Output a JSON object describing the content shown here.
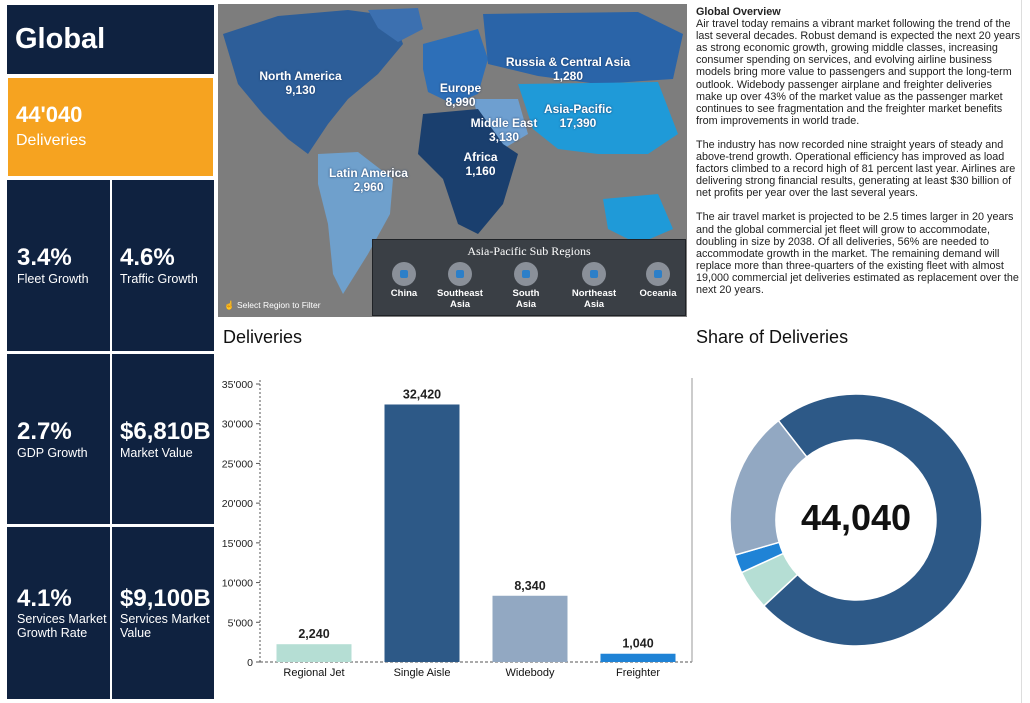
{
  "title": "Global",
  "deliveries_tile": {
    "value": "44'040",
    "label": "Deliveries"
  },
  "kpis": [
    {
      "value": "3.4%",
      "label": "Fleet Growth"
    },
    {
      "value": "4.6%",
      "label": "Traffic Growth"
    },
    {
      "value": "2.7%",
      "label": "GDP Growth"
    },
    {
      "value": "$6,810B",
      "label": "Market Value"
    },
    {
      "value": "4.1%",
      "label": "Services Market Growth Rate"
    },
    {
      "value": "$9,100B",
      "label": "Services Market Value"
    }
  ],
  "map": {
    "regions": [
      {
        "name": "North America",
        "value": "9,130"
      },
      {
        "name": "Europe",
        "value": "8,990"
      },
      {
        "name": "Russia & Central Asia",
        "value": "1,280"
      },
      {
        "name": "Middle East",
        "value": "3,130"
      },
      {
        "name": "Asia-Pacific",
        "value": "17,390"
      },
      {
        "name": "Africa",
        "value": "1,160"
      },
      {
        "name": "Latin America",
        "value": "2,960"
      }
    ],
    "subregions_title": "Asia-Pacific Sub Regions",
    "subregions": [
      "China",
      "Southeast Asia",
      "South Asia",
      "Northeast Asia",
      "Oceania"
    ],
    "select_hint": "Select Region to Filter"
  },
  "overview": {
    "heading": "Global Overview",
    "paragraphs": [
      "Air travel today remains a vibrant market following the trend of the last several decades. Robust demand is expected the next 20 years as strong economic growth, growing middle classes, increasing consumer spending on services, and evolving airline business models bring more value to passengers and support the long-term outlook. Widebody passenger airplane and freighter deliveries make up over 43% of the market value as the passenger market continues to see fragmentation and the freighter market benefits from improvements in world trade.",
      "The industry has now recorded nine straight years of steady and above-trend growth. Operational efficiency has improved as load factors climbed to a record high of 81 percent last year. Airlines are delivering strong financial results, generating at least $30 billion of net profits per year over the last several years.",
      "The air travel market is projected to be 2.5 times larger in 20 years and the global commercial jet fleet will grow to accommodate, doubling in size by 2038. Of all deliveries, 56% are needed to accommodate growth in the market. The remaining demand will replace more than three-quarters of the existing fleet with almost 19,000 commercial jet deliveries estimated as replacement over the next 20 years."
    ]
  },
  "deliveries_title": "Deliveries",
  "share_title": "Share of Deliveries",
  "donut_center": "44,040",
  "colors": {
    "navy": "#0f2240",
    "orange": "#f6a320",
    "regional": "#b5ded4",
    "single": "#2d5987",
    "wide": "#92a8c2",
    "freighter": "#1f83d6"
  },
  "chart_data": [
    {
      "type": "bar",
      "title": "Deliveries",
      "categories": [
        "Regional Jet",
        "Single Aisle",
        "Widebody",
        "Freighter"
      ],
      "values": [
        2240,
        32420,
        8340,
        1040
      ],
      "value_labels": [
        "2,240",
        "32,420",
        "8,340",
        "1,040"
      ],
      "ylim": [
        0,
        35000
      ],
      "yticks": [
        0,
        5000,
        10000,
        15000,
        20000,
        25000,
        30000,
        35000
      ],
      "ytick_labels": [
        "0",
        "5'000",
        "10'000",
        "15'000",
        "20'000",
        "25'000",
        "30'000",
        "35'000"
      ],
      "grid": false
    },
    {
      "type": "pie",
      "title": "Share of Deliveries",
      "categories": [
        "Single Aisle",
        "Regional Jet",
        "Freighter",
        "Widebody"
      ],
      "values": [
        32420,
        2240,
        1040,
        8340
      ],
      "center_label": "44,040"
    }
  ]
}
